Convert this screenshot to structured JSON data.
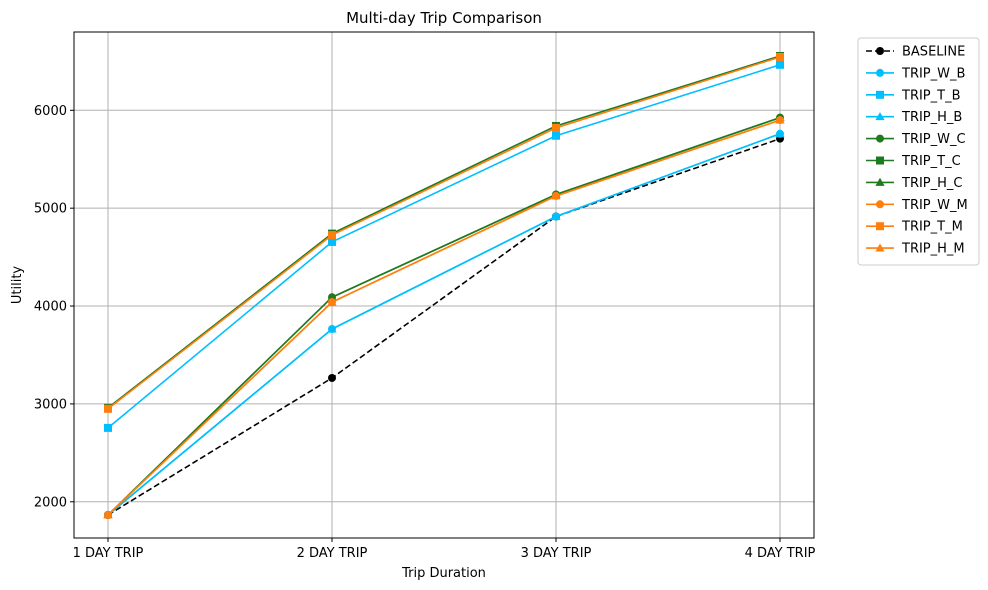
{
  "chart_data": {
    "type": "line",
    "title": "Multi-day Trip Comparison",
    "xlabel": "Trip Duration",
    "ylabel": "Utility",
    "categories": [
      "1 DAY TRIP",
      "2 DAY TRIP",
      "3 DAY TRIP",
      "4 DAY TRIP"
    ],
    "ylim": [
      1630,
      6800
    ],
    "yticks": [
      2000,
      3000,
      4000,
      5000,
      6000
    ],
    "grid": true,
    "legend_position": "outside-right-top",
    "series": [
      {
        "name": "BASELINE",
        "color": "#000000",
        "marker": "circle",
        "dashed": true,
        "values": [
          1865,
          3265,
          4915,
          5710
        ]
      },
      {
        "name": "TRIP_W_B",
        "color": "#00bfff",
        "marker": "circle",
        "values": [
          1865,
          3765,
          4915,
          5760
        ]
      },
      {
        "name": "TRIP_T_B",
        "color": "#00bfff",
        "marker": "square",
        "values": [
          2755,
          4655,
          5740,
          6465
        ]
      },
      {
        "name": "TRIP_H_B",
        "color": "#00bfff",
        "marker": "triangle",
        "values": [
          1865,
          3765,
          4915,
          5760
        ]
      },
      {
        "name": "TRIP_W_C",
        "color": "#1f7a1f",
        "marker": "circle",
        "values": [
          1865,
          4090,
          5140,
          5925
        ]
      },
      {
        "name": "TRIP_T_C",
        "color": "#1f7a1f",
        "marker": "square",
        "values": [
          2960,
          4740,
          5840,
          6555
        ]
      },
      {
        "name": "TRIP_H_C",
        "color": "#1f7a1f",
        "marker": "triangle",
        "values": [
          1865,
          4090,
          5140,
          5925
        ]
      },
      {
        "name": "TRIP_W_M",
        "color": "#ff7f0e",
        "marker": "circle",
        "values": [
          1865,
          4040,
          5125,
          5900
        ]
      },
      {
        "name": "TRIP_T_M",
        "color": "#ff7f0e",
        "marker": "square",
        "values": [
          2950,
          4725,
          5820,
          6545
        ]
      },
      {
        "name": "TRIP_H_M",
        "color": "#ff7f0e",
        "marker": "triangle",
        "values": [
          1865,
          4040,
          5125,
          5900
        ]
      }
    ]
  }
}
